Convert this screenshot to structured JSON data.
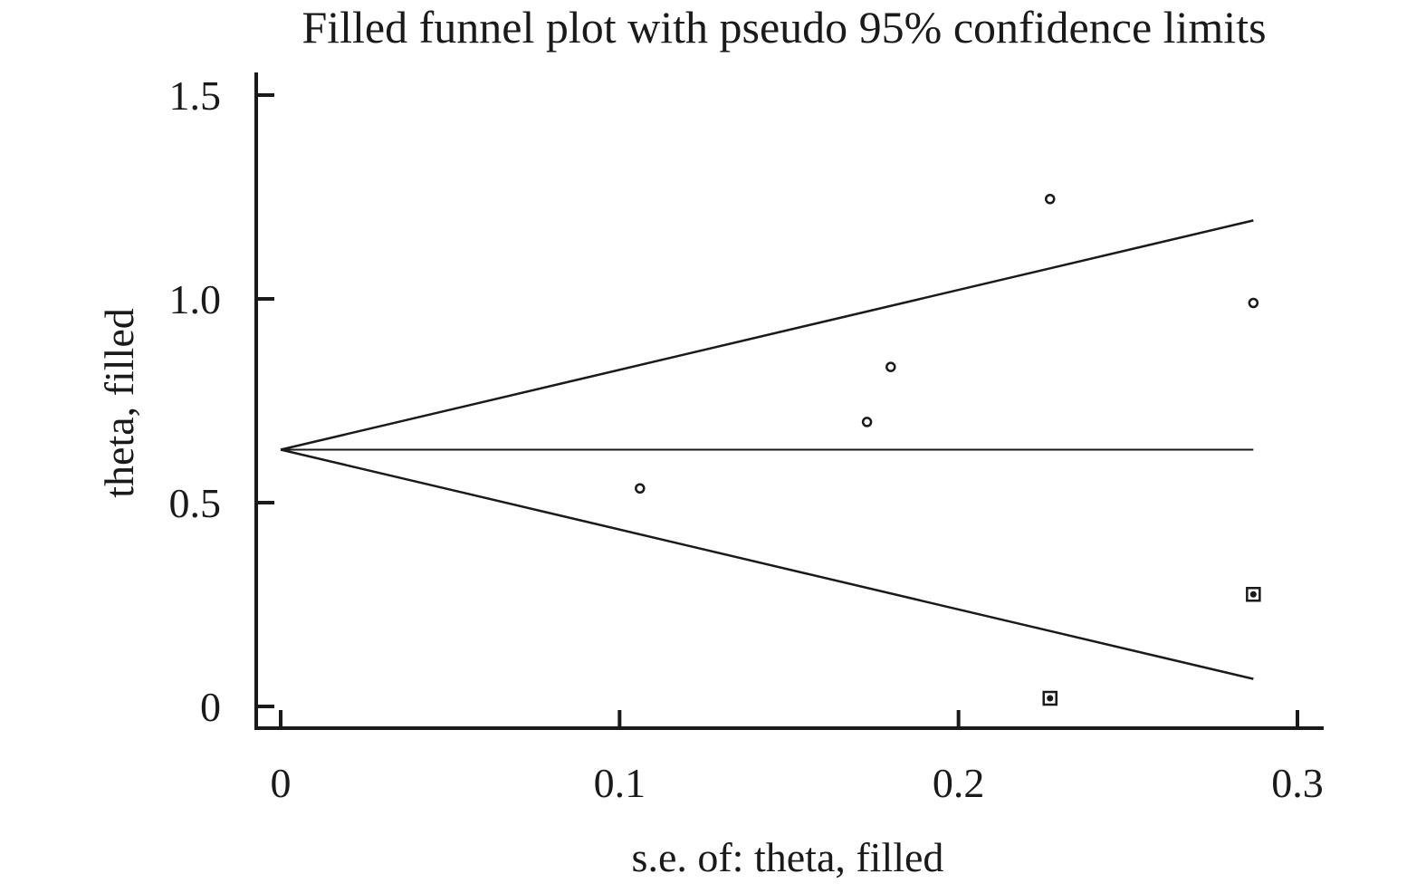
{
  "chart_data": {
    "type": "scatter",
    "title": "Filled funnel plot with pseudo 95% confidence limits",
    "xlabel": "s.e. of: theta, filled",
    "ylabel": "theta, filled",
    "xlim": [
      0,
      0.3
    ],
    "ylim": [
      0,
      1.5
    ],
    "x_ticks": [
      0,
      0.1,
      0.2,
      0.3
    ],
    "x_tick_labels": [
      "0",
      "0.1",
      "0.2",
      "0.3"
    ],
    "y_ticks": [
      0,
      0.5,
      1.0,
      1.5
    ],
    "y_tick_labels": [
      "0",
      "0.5",
      "1.0",
      "1.5"
    ],
    "grid": false,
    "pooled_estimate": 0.63,
    "max_se": 0.287,
    "series": [
      {
        "marker": "circle",
        "points": [
          {
            "x": 0.106,
            "y": 0.535
          },
          {
            "x": 0.173,
            "y": 0.698
          },
          {
            "x": 0.18,
            "y": 0.833
          },
          {
            "x": 0.227,
            "y": 1.245
          },
          {
            "x": 0.287,
            "y": 0.99
          }
        ]
      },
      {
        "marker": "square-dot",
        "points": [
          {
            "x": 0.227,
            "y": 0.02
          },
          {
            "x": 0.287,
            "y": 0.275
          }
        ]
      }
    ]
  }
}
